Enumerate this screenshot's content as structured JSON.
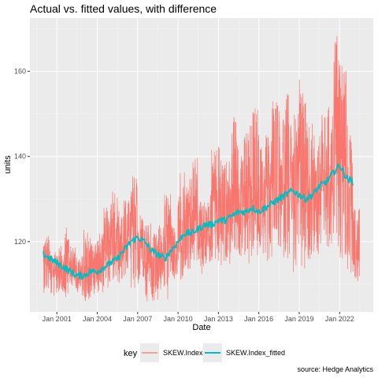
{
  "chart_data": {
    "type": "line",
    "title": "Actual vs. fitted values, with difference",
    "xlabel": "Date",
    "ylabel": "units",
    "caption": "source: Hedge Analytics",
    "legend_title": "key",
    "legend_position": "bottom",
    "grid": true,
    "xlim": [
      1999.0,
      2024.5
    ],
    "ylim": [
      103.5,
      172.5
    ],
    "x_ticks": [
      {
        "value": 2001,
        "label": "Jan 2001"
      },
      {
        "value": 2004,
        "label": "Jan 2004"
      },
      {
        "value": 2007,
        "label": "Jan 2007"
      },
      {
        "value": 2010,
        "label": "Jan 2010"
      },
      {
        "value": 2013,
        "label": "Jan 2013"
      },
      {
        "value": 2016,
        "label": "Jan 2016"
      },
      {
        "value": 2019,
        "label": "Jan 2019"
      },
      {
        "value": 2022,
        "label": "Jan 2022"
      }
    ],
    "y_ticks": [
      {
        "value": 120,
        "label": "120"
      },
      {
        "value": 140,
        "label": "140"
      },
      {
        "value": 160,
        "label": "160"
      }
    ],
    "series": [
      {
        "name": "SKEW.Index",
        "color": "#f8766d",
        "x": [
          2000.0,
          2000.5,
          2001.0,
          2001.5,
          2002.0,
          2002.5,
          2003.0,
          2003.5,
          2004.0,
          2004.5,
          2005.0,
          2005.5,
          2006.0,
          2006.5,
          2007.0,
          2007.5,
          2008.0,
          2008.5,
          2009.0,
          2009.5,
          2010.0,
          2010.5,
          2011.0,
          2011.5,
          2012.0,
          2012.5,
          2013.0,
          2013.5,
          2014.0,
          2014.5,
          2015.0,
          2015.5,
          2016.0,
          2016.5,
          2017.0,
          2017.5,
          2018.0,
          2018.5,
          2019.0,
          2019.5,
          2020.0,
          2020.5,
          2021.0,
          2021.5,
          2022.0,
          2022.5,
          2023.0
        ],
        "high": [
          122,
          118,
          119,
          124,
          119,
          117,
          123,
          121,
          122,
          128,
          134,
          128,
          130,
          136,
          127,
          125,
          122,
          124,
          132,
          124,
          138,
          135,
          140,
          130,
          132,
          142,
          143,
          140,
          150,
          145,
          148,
          152,
          143,
          146,
          155,
          152,
          155,
          150,
          159,
          148,
          145,
          150,
          152,
          170,
          165,
          148,
          128
        ],
        "low": [
          108,
          107,
          108,
          107,
          109,
          107,
          106,
          107,
          108,
          109,
          110,
          110,
          112,
          108,
          110,
          106,
          106,
          108,
          106,
          111,
          110,
          112,
          114,
          112,
          114,
          115,
          114,
          114,
          115,
          116,
          112,
          116,
          116,
          115,
          118,
          116,
          116,
          112,
          111,
          113,
          116,
          118,
          116,
          118,
          116,
          112,
          110
        ]
      },
      {
        "name": "SKEW.Index_fitted",
        "color": "#00bfc4",
        "x": [
          2000.0,
          2000.5,
          2001.0,
          2001.5,
          2002.0,
          2002.5,
          2003.0,
          2003.5,
          2004.0,
          2004.5,
          2005.0,
          2005.5,
          2006.0,
          2006.5,
          2007.0,
          2007.5,
          2008.0,
          2008.5,
          2009.0,
          2009.5,
          2010.0,
          2010.5,
          2011.0,
          2011.5,
          2012.0,
          2012.5,
          2013.0,
          2013.5,
          2014.0,
          2014.5,
          2015.0,
          2015.5,
          2016.0,
          2016.5,
          2017.0,
          2017.5,
          2018.0,
          2018.5,
          2019.0,
          2019.5,
          2020.0,
          2020.5,
          2021.0,
          2021.5,
          2022.0,
          2022.5,
          2023.0
        ],
        "y": [
          117,
          116,
          115,
          114,
          113,
          112,
          112,
          113,
          113,
          114,
          115,
          116,
          118,
          120,
          121,
          120,
          118,
          117,
          116,
          118,
          120,
          122,
          122,
          123,
          124,
          124,
          125,
          125,
          126,
          127,
          127,
          128,
          127,
          128,
          129,
          130,
          131,
          132,
          131,
          130,
          131,
          133,
          134,
          136,
          138,
          135,
          134
        ]
      }
    ]
  }
}
